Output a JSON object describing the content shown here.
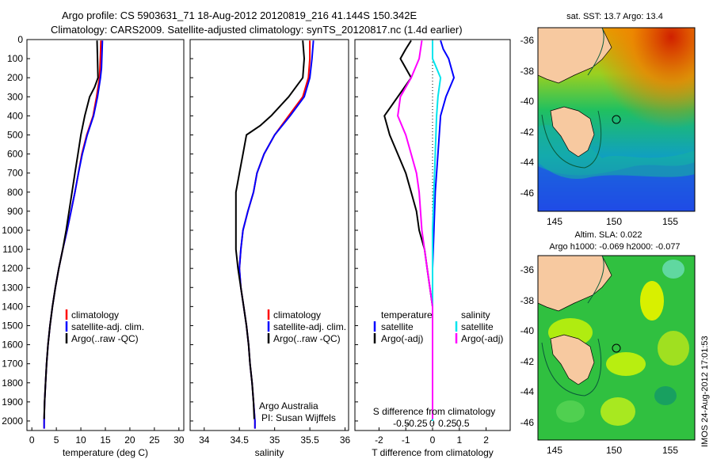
{
  "header": {
    "line1": "Argo profile: CS 5903631_71 18-Aug-2012 20120819_216 41.144S 150.342E",
    "line2": "Climatology: CARS2009. Satellite-adjusted climatology: synTS_20120817.nc (1.4d earlier)"
  },
  "footer_stamp": "IMOS 24-Aug-2012 17:01:53",
  "colors": {
    "climatology": "#ff0000",
    "satellite": "#0000ff",
    "argo": "#000000",
    "s_satellite": "#00e5ee",
    "s_argo": "#ff00ff",
    "land": "#f7c9a0"
  },
  "chart_data": [
    {
      "type": "line",
      "panel": "temperature",
      "xlabel": "temperature (deg C)",
      "ylim": [
        2050,
        0
      ],
      "xlim": [
        -1,
        31
      ],
      "xticks": [
        0,
        5,
        10,
        15,
        20,
        25,
        30
      ],
      "yticks": [
        0,
        100,
        200,
        300,
        400,
        500,
        600,
        700,
        800,
        900,
        1000,
        1100,
        1200,
        1300,
        1400,
        1500,
        1600,
        1700,
        1800,
        1900,
        2000
      ],
      "legend": [
        "climatology",
        "satellite-adj. clim.",
        "Argo(..raw -QC)"
      ],
      "series": [
        {
          "name": "climatology",
          "color": "#ff0000",
          "points": [
            [
              14.1,
              5
            ],
            [
              13.9,
              150
            ],
            [
              13.8,
              200
            ],
            [
              13.2,
              300
            ],
            [
              12.5,
              400
            ],
            [
              11.2,
              500
            ],
            [
              10.2,
              600
            ],
            [
              9.5,
              700
            ],
            [
              8.8,
              800
            ],
            [
              8.0,
              900
            ],
            [
              7.2,
              1000
            ],
            [
              6.3,
              1100
            ],
            [
              5.5,
              1200
            ],
            [
              4.8,
              1300
            ],
            [
              4.2,
              1400
            ],
            [
              3.7,
              1500
            ],
            [
              3.3,
              1600
            ],
            [
              3.0,
              1700
            ],
            [
              2.8,
              1800
            ],
            [
              2.6,
              1900
            ],
            [
              2.5,
              2000
            ],
            [
              2.5,
              2040
            ]
          ]
        },
        {
          "name": "satellite-adj. clim.",
          "color": "#0000ff",
          "points": [
            [
              14.4,
              5
            ],
            [
              14.2,
              150
            ],
            [
              14.0,
              200
            ],
            [
              13.4,
              300
            ],
            [
              12.6,
              400
            ],
            [
              11.3,
              500
            ],
            [
              10.3,
              600
            ],
            [
              9.5,
              700
            ],
            [
              8.8,
              800
            ],
            [
              8.0,
              900
            ],
            [
              7.2,
              1000
            ],
            [
              6.3,
              1100
            ],
            [
              5.5,
              1200
            ],
            [
              4.8,
              1300
            ],
            [
              4.2,
              1400
            ],
            [
              3.7,
              1500
            ],
            [
              3.3,
              1600
            ],
            [
              3.0,
              1700
            ],
            [
              2.8,
              1800
            ],
            [
              2.6,
              1900
            ],
            [
              2.5,
              2000
            ],
            [
              2.5,
              2040
            ]
          ]
        },
        {
          "name": "Argo(..raw -QC)",
          "color": "#000000",
          "points": [
            [
              13.3,
              5
            ],
            [
              13.4,
              100
            ],
            [
              13.5,
              200
            ],
            [
              12.8,
              250
            ],
            [
              11.8,
              300
            ],
            [
              10.8,
              400
            ],
            [
              10.0,
              500
            ],
            [
              9.4,
              600
            ],
            [
              8.8,
              700
            ],
            [
              8.2,
              800
            ],
            [
              7.6,
              900
            ],
            [
              7.0,
              1000
            ],
            [
              6.3,
              1100
            ],
            [
              5.5,
              1200
            ],
            [
              4.8,
              1300
            ],
            [
              4.2,
              1400
            ],
            [
              3.7,
              1500
            ],
            [
              3.3,
              1600
            ],
            [
              3.0,
              1700
            ],
            [
              2.8,
              1800
            ],
            [
              2.6,
              1900
            ],
            [
              2.5,
              1990
            ]
          ]
        }
      ]
    },
    {
      "type": "line",
      "panel": "salinity",
      "xlabel": "salinity",
      "ylim": [
        2050,
        0
      ],
      "xlim": [
        33.8,
        36.05
      ],
      "xticks": [
        34,
        34.5,
        35,
        35.5,
        36
      ],
      "xticklabels": [
        "34",
        "34.5",
        "35",
        "35.5",
        "36"
      ],
      "legend": [
        "climatology",
        "satellite-adj. clim.",
        "Argo(..raw -QC)"
      ],
      "annotation": [
        "Argo Australia",
        "PI: Susan Wijffels"
      ],
      "series": [
        {
          "name": "climatology",
          "color": "#ff0000",
          "points": [
            [
              35.5,
              5
            ],
            [
              35.5,
              100
            ],
            [
              35.48,
              200
            ],
            [
              35.4,
              300
            ],
            [
              35.2,
              400
            ],
            [
              35.0,
              500
            ],
            [
              34.85,
              600
            ],
            [
              34.75,
              700
            ],
            [
              34.7,
              800
            ],
            [
              34.62,
              900
            ],
            [
              34.55,
              1000
            ],
            [
              34.52,
              1100
            ],
            [
              34.5,
              1200
            ],
            [
              34.52,
              1300
            ],
            [
              34.56,
              1400
            ],
            [
              34.6,
              1500
            ],
            [
              34.63,
              1600
            ],
            [
              34.65,
              1700
            ],
            [
              34.68,
              1800
            ],
            [
              34.7,
              1900
            ],
            [
              34.72,
              2000
            ],
            [
              34.72,
              2040
            ]
          ]
        },
        {
          "name": "satellite-adj. clim.",
          "color": "#0000ff",
          "points": [
            [
              35.55,
              5
            ],
            [
              35.53,
              100
            ],
            [
              35.5,
              200
            ],
            [
              35.42,
              300
            ],
            [
              35.22,
              400
            ],
            [
              35.0,
              500
            ],
            [
              34.85,
              600
            ],
            [
              34.75,
              700
            ],
            [
              34.7,
              800
            ],
            [
              34.62,
              900
            ],
            [
              34.55,
              1000
            ],
            [
              34.52,
              1100
            ],
            [
              34.5,
              1200
            ],
            [
              34.52,
              1300
            ],
            [
              34.56,
              1400
            ],
            [
              34.6,
              1500
            ],
            [
              34.63,
              1600
            ],
            [
              34.65,
              1700
            ],
            [
              34.68,
              1800
            ],
            [
              34.7,
              1900
            ],
            [
              34.72,
              2000
            ],
            [
              34.72,
              2040
            ]
          ]
        },
        {
          "name": "Argo(..raw -QC)",
          "color": "#000000",
          "points": [
            [
              35.4,
              5
            ],
            [
              35.42,
              100
            ],
            [
              35.4,
              200
            ],
            [
              35.2,
              300
            ],
            [
              34.95,
              400
            ],
            [
              34.8,
              450
            ],
            [
              34.6,
              500
            ],
            [
              34.55,
              600
            ],
            [
              34.5,
              700
            ],
            [
              34.45,
              800
            ],
            [
              34.45,
              900
            ],
            [
              34.45,
              1000
            ],
            [
              34.45,
              1100
            ],
            [
              34.48,
              1200
            ],
            [
              34.52,
              1300
            ],
            [
              34.56,
              1400
            ],
            [
              34.6,
              1500
            ],
            [
              34.63,
              1600
            ],
            [
              34.65,
              1700
            ],
            [
              34.68,
              1800
            ],
            [
              34.7,
              1900
            ],
            [
              34.71,
              1990
            ]
          ]
        }
      ]
    },
    {
      "type": "line",
      "panel": "difference",
      "xlabel": "T difference from climatology",
      "xlabel_top": "S difference from climatology",
      "ylim": [
        2050,
        0
      ],
      "xlim": [
        -2.9,
        2.9
      ],
      "xticks": [
        -2,
        -1,
        0,
        1,
        2
      ],
      "xticks_top": [
        "-0.5",
        "-0.25",
        "0",
        "0.25",
        "0.5"
      ],
      "legend_temperature": {
        "title": "temperature",
        "items": [
          "satellite",
          "Argo(-adj)"
        ]
      },
      "legend_salinity": {
        "title": "salinity",
        "items": [
          "satellite",
          "Argo(-adj)"
        ]
      },
      "series": [
        {
          "name": "T satellite",
          "color": "#0000ff",
          "points": [
            [
              0.3,
              5
            ],
            [
              0.4,
              50
            ],
            [
              0.6,
              100
            ],
            [
              0.8,
              200
            ],
            [
              0.5,
              300
            ],
            [
              0.3,
              400
            ],
            [
              0.2,
              600
            ],
            [
              0.1,
              800
            ],
            [
              0.05,
              1000
            ],
            [
              0,
              1200
            ],
            [
              0,
              1400
            ],
            [
              0,
              1600
            ],
            [
              0,
              2000
            ]
          ]
        },
        {
          "name": "T Argo(-adj)",
          "color": "#000000",
          "points": [
            [
              -0.8,
              5
            ],
            [
              -1.0,
              50
            ],
            [
              -1.2,
              100
            ],
            [
              -0.8,
              200
            ],
            [
              -1.3,
              300
            ],
            [
              -1.8,
              400
            ],
            [
              -1.6,
              500
            ],
            [
              -1.3,
              600
            ],
            [
              -1.0,
              700
            ],
            [
              -0.8,
              800
            ],
            [
              -0.6,
              900
            ],
            [
              -0.5,
              1000
            ],
            [
              -0.3,
              1100
            ],
            [
              -0.2,
              1200
            ],
            [
              -0.1,
              1300
            ],
            [
              0,
              1400
            ],
            [
              0,
              1600
            ],
            [
              0,
              1990
            ]
          ]
        },
        {
          "name": "S satellite",
          "color": "#00e5ee",
          "points": [
            [
              0.0,
              5
            ],
            [
              0.0,
              100
            ],
            [
              0.3,
              200
            ],
            [
              0.2,
              300
            ],
            [
              0.15,
              400
            ],
            [
              0.1,
              600
            ],
            [
              0.05,
              800
            ],
            [
              0,
              1000
            ],
            [
              0,
              1400
            ],
            [
              0,
              2000
            ]
          ]
        },
        {
          "name": "S Argo(-adj)",
          "color": "#ff00ff",
          "points": [
            [
              -0.4,
              5
            ],
            [
              -0.5,
              100
            ],
            [
              -0.8,
              200
            ],
            [
              -1.2,
              300
            ],
            [
              -1.3,
              400
            ],
            [
              -1.0,
              500
            ],
            [
              -0.8,
              600
            ],
            [
              -0.6,
              700
            ],
            [
              -0.5,
              800
            ],
            [
              -0.4,
              1000
            ],
            [
              -0.2,
              1200
            ],
            [
              -0.1,
              1300
            ],
            [
              0,
              1400
            ],
            [
              0,
              1990
            ]
          ]
        }
      ]
    }
  ],
  "maps": [
    {
      "title": "sat. SST: 13.7 Argo: 13.4",
      "xticks": [
        "145",
        "150",
        "155"
      ],
      "yticks": [
        "-36",
        "-38",
        "-40",
        "-42",
        "-44",
        "-46"
      ]
    },
    {
      "title1": "Altim. SLA: 0.022",
      "title2": "Argo h1000: -0.069 h2000: -0.077",
      "xticks": [
        "145",
        "150",
        "155"
      ],
      "yticks": [
        "-36",
        "-38",
        "-40",
        "-42",
        "-44",
        "-46"
      ]
    }
  ]
}
